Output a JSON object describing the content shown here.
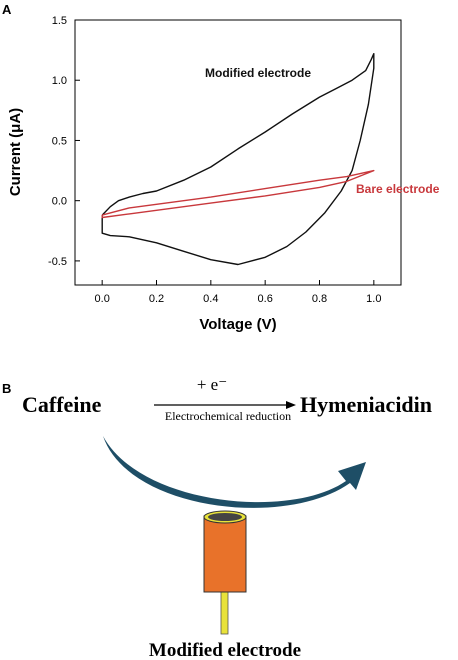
{
  "panel_a": {
    "label": "A",
    "chart_data": {
      "type": "line",
      "xlabel": "Voltage (V)",
      "ylabel": "Current (μA)",
      "xlim": [
        -0.1,
        1.1
      ],
      "ylim": [
        -0.7,
        1.5
      ],
      "xticks": [
        0.0,
        0.2,
        0.4,
        0.6,
        0.8,
        1.0
      ],
      "xtick_labels": [
        "0.0",
        "0.2",
        "0.4",
        "0.6",
        "0.8",
        "1.0"
      ],
      "yticks": [
        -0.5,
        0.0,
        0.5,
        1.0,
        1.5
      ],
      "ytick_labels": [
        "-0.5",
        "0.0",
        "0.5",
        "1.0",
        "1.5"
      ],
      "grid": false,
      "series": [
        {
          "name": "Modified electrode",
          "color": "#111111",
          "points": [
            [
              0.0,
              -0.12
            ],
            [
              0.03,
              -0.05
            ],
            [
              0.06,
              0.0
            ],
            [
              0.1,
              0.03
            ],
            [
              0.15,
              0.06
            ],
            [
              0.2,
              0.08
            ],
            [
              0.3,
              0.17
            ],
            [
              0.4,
              0.28
            ],
            [
              0.5,
              0.43
            ],
            [
              0.6,
              0.57
            ],
            [
              0.7,
              0.72
            ],
            [
              0.8,
              0.86
            ],
            [
              0.86,
              0.93
            ],
            [
              0.92,
              1.0
            ],
            [
              0.97,
              1.08
            ],
            [
              0.99,
              1.17
            ],
            [
              1.0,
              1.22
            ],
            [
              1.0,
              1.1
            ],
            [
              0.98,
              0.8
            ],
            [
              0.95,
              0.5
            ],
            [
              0.92,
              0.25
            ],
            [
              0.88,
              0.08
            ],
            [
              0.82,
              -0.1
            ],
            [
              0.75,
              -0.26
            ],
            [
              0.68,
              -0.38
            ],
            [
              0.6,
              -0.47
            ],
            [
              0.5,
              -0.53
            ],
            [
              0.4,
              -0.49
            ],
            [
              0.3,
              -0.42
            ],
            [
              0.2,
              -0.35
            ],
            [
              0.1,
              -0.3
            ],
            [
              0.03,
              -0.29
            ],
            [
              0.0,
              -0.27
            ],
            [
              0.0,
              -0.12
            ]
          ]
        },
        {
          "name": "Bare electrode",
          "color": "#c8383c",
          "points": [
            [
              0.0,
              -0.12
            ],
            [
              0.1,
              -0.06
            ],
            [
              0.2,
              -0.03
            ],
            [
              0.4,
              0.03
            ],
            [
              0.6,
              0.1
            ],
            [
              0.8,
              0.17
            ],
            [
              0.9,
              0.2
            ],
            [
              1.0,
              0.25
            ],
            [
              0.9,
              0.16
            ],
            [
              0.8,
              0.11
            ],
            [
              0.6,
              0.04
            ],
            [
              0.4,
              -0.02
            ],
            [
              0.2,
              -0.08
            ],
            [
              0.1,
              -0.11
            ],
            [
              0.0,
              -0.14
            ],
            [
              0.0,
              -0.12
            ]
          ]
        }
      ],
      "annotations": [
        {
          "text": "Modified electrode",
          "color": "#111111"
        },
        {
          "text": "Bare electrode",
          "color": "#c8383c"
        }
      ]
    }
  },
  "panel_b": {
    "label": "B",
    "reactant": "Caffeine",
    "product": "Hymeniacidin",
    "above_arrow": "+ e⁻",
    "below_arrow": "Electrochemical reduction",
    "electrode_label": "Modified electrode",
    "arrow_color": "#1e4e66",
    "electrode_color": "#e8722a",
    "electrode_cap_color": "#e8e23a"
  }
}
